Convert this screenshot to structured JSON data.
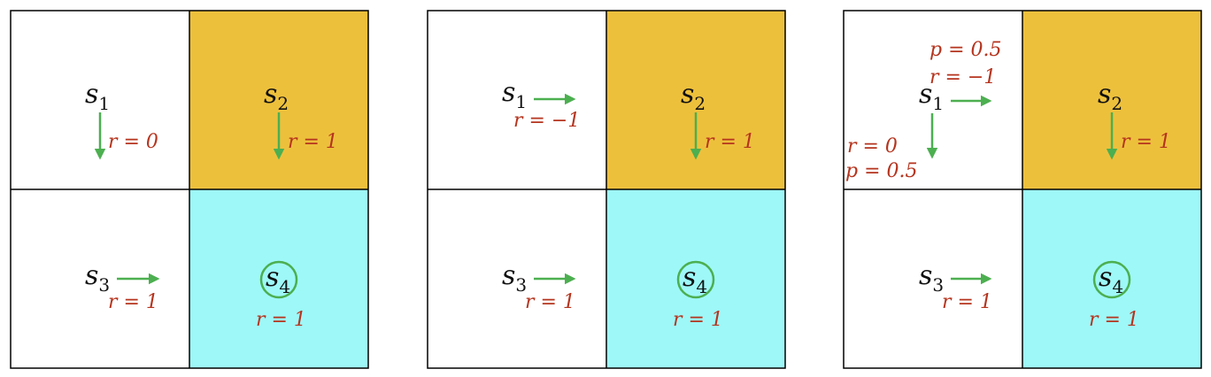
{
  "colors": {
    "plain_cell": "#ffffff",
    "s2_cell": "#edc03c",
    "goal_cell": "#9ef8f8",
    "arrow": "#4caf50",
    "reward_text": "#b5341e"
  },
  "panels": [
    {
      "states": [
        {
          "letter": "s",
          "sub": "1"
        },
        {
          "letter": "s",
          "sub": "2"
        },
        {
          "letter": "s",
          "sub": "3"
        },
        {
          "letter": "s",
          "sub": "4"
        }
      ],
      "labels": [
        "r = 0",
        "r = 1",
        "r = 1",
        "r = 1"
      ]
    },
    {
      "states": [
        {
          "letter": "s",
          "sub": "1"
        },
        {
          "letter": "s",
          "sub": "2"
        },
        {
          "letter": "s",
          "sub": "3"
        },
        {
          "letter": "s",
          "sub": "4"
        }
      ],
      "labels": [
        "r = −1",
        "r = 1",
        "r = 1",
        "r = 1"
      ]
    },
    {
      "states": [
        {
          "letter": "s",
          "sub": "1"
        },
        {
          "letter": "s",
          "sub": "2"
        },
        {
          "letter": "s",
          "sub": "3"
        },
        {
          "letter": "s",
          "sub": "4"
        }
      ],
      "labels": [
        "p = 0.5",
        "r = −1",
        "r = 0",
        "p = 0.5",
        "r = 1",
        "r = 1",
        "r = 1"
      ]
    }
  ]
}
